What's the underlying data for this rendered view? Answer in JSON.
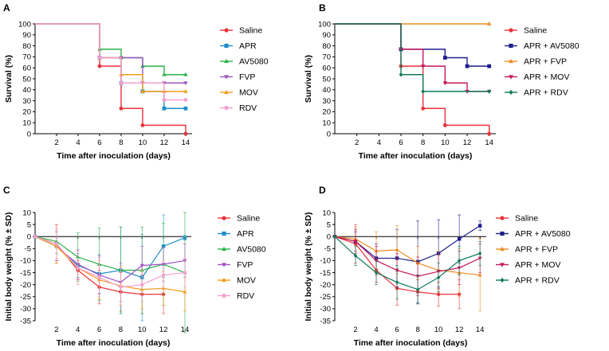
{
  "colors": {
    "Saline": "#e8333a",
    "APR": "#1f8fc9",
    "AV5080": "#2ab34a",
    "FVP": "#a055c2",
    "MOV": "#f39c1a",
    "RDV": "#f59fcf",
    "APR + AV5080": "#1f1f8c",
    "APR + FVP": "#f08a24",
    "APR + MOV": "#c2185b",
    "APR + RDV": "#127a5a"
  },
  "chart_data": [
    {
      "id": "A",
      "panel_label": "A",
      "type": "line",
      "step": true,
      "xlabel": "Time after inoculation (days)",
      "ylabel": "Survival (%)",
      "xlim": [
        0,
        14.6
      ],
      "ylim": [
        0,
        100
      ],
      "xticks": [
        2,
        4,
        6,
        8,
        10,
        12,
        14
      ],
      "yticks": [
        0,
        10,
        20,
        30,
        40,
        50,
        60,
        70,
        80,
        90,
        100
      ],
      "legend_position": "right",
      "series": [
        {
          "name": "Saline",
          "x": [
            0,
            6,
            8,
            10,
            14
          ],
          "y": [
            100,
            61.5,
            23,
            7.7,
            0
          ]
        },
        {
          "name": "APR",
          "x": [
            0,
            6,
            8,
            10,
            12,
            14
          ],
          "y": [
            100,
            69.2,
            46.2,
            38.5,
            23,
            23
          ]
        },
        {
          "name": "AV5080",
          "x": [
            0,
            6,
            8,
            10,
            12,
            14
          ],
          "y": [
            100,
            76.9,
            69.2,
            61.5,
            53.8,
            53.8
          ]
        },
        {
          "name": "FVP",
          "x": [
            0,
            6,
            8,
            10,
            12,
            14
          ],
          "y": [
            100,
            69.2,
            69.2,
            46.2,
            46.2,
            46.2
          ]
        },
        {
          "name": "MOV",
          "x": [
            0,
            6,
            8,
            10,
            12,
            14
          ],
          "y": [
            100,
            69.2,
            53.8,
            38.5,
            38.5,
            38.5
          ]
        },
        {
          "name": "RDV",
          "x": [
            0,
            6,
            8,
            12,
            14
          ],
          "y": [
            100,
            69.2,
            46.2,
            30.8,
            30.8
          ]
        }
      ]
    },
    {
      "id": "B",
      "panel_label": "B",
      "type": "line",
      "step": true,
      "xlabel": "Time after inoculation (days)",
      "ylabel": "Survival (%)",
      "xlim": [
        0,
        14.6
      ],
      "ylim": [
        0,
        100
      ],
      "xticks": [
        2,
        4,
        6,
        8,
        10,
        12,
        14
      ],
      "yticks": [
        0,
        10,
        20,
        30,
        40,
        50,
        60,
        70,
        80,
        90,
        100
      ],
      "legend_position": "right",
      "series": [
        {
          "name": "Saline",
          "x": [
            0,
            6,
            8,
            10,
            14
          ],
          "y": [
            100,
            61.5,
            23,
            7.7,
            0
          ]
        },
        {
          "name": "APR + AV5080",
          "x": [
            0,
            6,
            10,
            12,
            14
          ],
          "y": [
            100,
            76.9,
            69.2,
            61.5,
            61.5
          ]
        },
        {
          "name": "APR + FVP",
          "x": [
            0,
            14
          ],
          "y": [
            100,
            100
          ]
        },
        {
          "name": "APR + MOV",
          "x": [
            0,
            6,
            8,
            10,
            12,
            14
          ],
          "y": [
            100,
            76.9,
            61.5,
            46.2,
            38.5,
            38.5
          ]
        },
        {
          "name": "APR + RDV",
          "x": [
            0,
            6,
            8,
            14
          ],
          "y": [
            100,
            53.8,
            38.5,
            38.5
          ]
        }
      ]
    },
    {
      "id": "C",
      "panel_label": "C",
      "type": "line",
      "errorbars": true,
      "xlabel": "Time after inoculation (days)",
      "ylabel": "Initial body weight (% ± SD)",
      "xlim": [
        0,
        14.6
      ],
      "ylim": [
        -35,
        10
      ],
      "xticks": [
        2,
        4,
        6,
        8,
        10,
        12,
        14
      ],
      "yticks": [
        10,
        5,
        0,
        -5,
        -10,
        -15,
        -20,
        -25,
        -30,
        -35
      ],
      "legend_position": "right",
      "series": [
        {
          "name": "Saline",
          "x": [
            0,
            2,
            4,
            6,
            8,
            10,
            12
          ],
          "y": [
            0,
            -3,
            -14,
            -21,
            -23,
            -24,
            -24
          ],
          "err": [
            0,
            8,
            4,
            7,
            8,
            8,
            8
          ]
        },
        {
          "name": "APR",
          "x": [
            0,
            2,
            4,
            6,
            8,
            10,
            12,
            14
          ],
          "y": [
            0,
            -4,
            -12,
            -15.5,
            -14,
            -17,
            -4,
            -0.5
          ],
          "err": [
            0,
            6,
            5,
            8,
            18,
            18,
            13,
            1
          ]
        },
        {
          "name": "AV5080",
          "x": [
            0,
            2,
            4,
            6,
            8,
            10,
            12,
            14
          ],
          "y": [
            0,
            -2,
            -8.5,
            -11.5,
            -14,
            -14,
            -11.5,
            -15
          ],
          "err": [
            0,
            5,
            10,
            15,
            18,
            18,
            17,
            25
          ]
        },
        {
          "name": "FVP",
          "x": [
            0,
            2,
            4,
            6,
            8,
            10,
            12,
            14
          ],
          "y": [
            0,
            -4,
            -11.5,
            -16,
            -19,
            -12,
            -11.5,
            -10
          ],
          "err": [
            0,
            6,
            6,
            8,
            8,
            8,
            7,
            7
          ]
        },
        {
          "name": "MOV",
          "x": [
            0,
            2,
            4,
            6,
            8,
            10,
            12,
            14
          ],
          "y": [
            0,
            -4,
            -13,
            -18,
            -20.5,
            -22,
            -21.5,
            -23
          ],
          "err": [
            0,
            7,
            7,
            8,
            8,
            8,
            7,
            8
          ]
        },
        {
          "name": "RDV",
          "x": [
            0,
            2,
            4,
            6,
            8,
            10,
            12,
            14
          ],
          "y": [
            0,
            -3,
            -13,
            -17,
            -21,
            -20,
            -16,
            -15
          ],
          "err": [
            0,
            6,
            7,
            8,
            8,
            7,
            6,
            6
          ]
        }
      ]
    },
    {
      "id": "D",
      "panel_label": "D",
      "type": "line",
      "errorbars": true,
      "xlabel": "Time after inoculation (days)",
      "ylabel": "Initial body weight (% ± SD)",
      "xlim": [
        0,
        14.6
      ],
      "ylim": [
        -35,
        10
      ],
      "xticks": [
        2,
        4,
        6,
        8,
        10,
        12,
        14
      ],
      "yticks": [
        10,
        5,
        0,
        -5,
        -10,
        -15,
        -20,
        -25,
        -30,
        -35
      ],
      "legend_position": "right",
      "series": [
        {
          "name": "Saline",
          "x": [
            0,
            2,
            4,
            6,
            8,
            10,
            12
          ],
          "y": [
            0,
            -3,
            -14,
            -21.5,
            -23,
            -24,
            -24
          ],
          "err": [
            0,
            8,
            5,
            7,
            5,
            5,
            6
          ]
        },
        {
          "name": "APR + AV5080",
          "x": [
            0,
            2,
            4,
            6,
            8,
            10,
            12,
            14
          ],
          "y": [
            0,
            -2,
            -9,
            -9,
            -10.5,
            -7,
            -1,
            4.5
          ],
          "err": [
            0,
            4,
            6,
            12,
            17,
            14,
            10,
            2
          ]
        },
        {
          "name": "APR + FVP",
          "x": [
            0,
            2,
            4,
            6,
            8,
            10,
            12,
            14
          ],
          "y": [
            0,
            -1,
            -6,
            -5.5,
            -11,
            -14,
            -15,
            -16
          ],
          "err": [
            0,
            5,
            8,
            10,
            7,
            8,
            10,
            15
          ]
        },
        {
          "name": "APR + MOV",
          "x": [
            0,
            2,
            4,
            6,
            8,
            10,
            12,
            14
          ],
          "y": [
            0,
            -2,
            -10,
            -14,
            -16.5,
            -14.5,
            -13,
            -9
          ],
          "err": [
            0,
            5,
            6,
            7,
            8,
            7,
            7,
            6
          ]
        },
        {
          "name": "APR + RDV",
          "x": [
            0,
            2,
            4,
            6,
            8,
            10,
            12,
            14
          ],
          "y": [
            0,
            -8,
            -15,
            -19,
            -22,
            -17,
            -10,
            -7
          ],
          "err": [
            0,
            4,
            5,
            7,
            6,
            6,
            6,
            5
          ]
        }
      ]
    }
  ]
}
